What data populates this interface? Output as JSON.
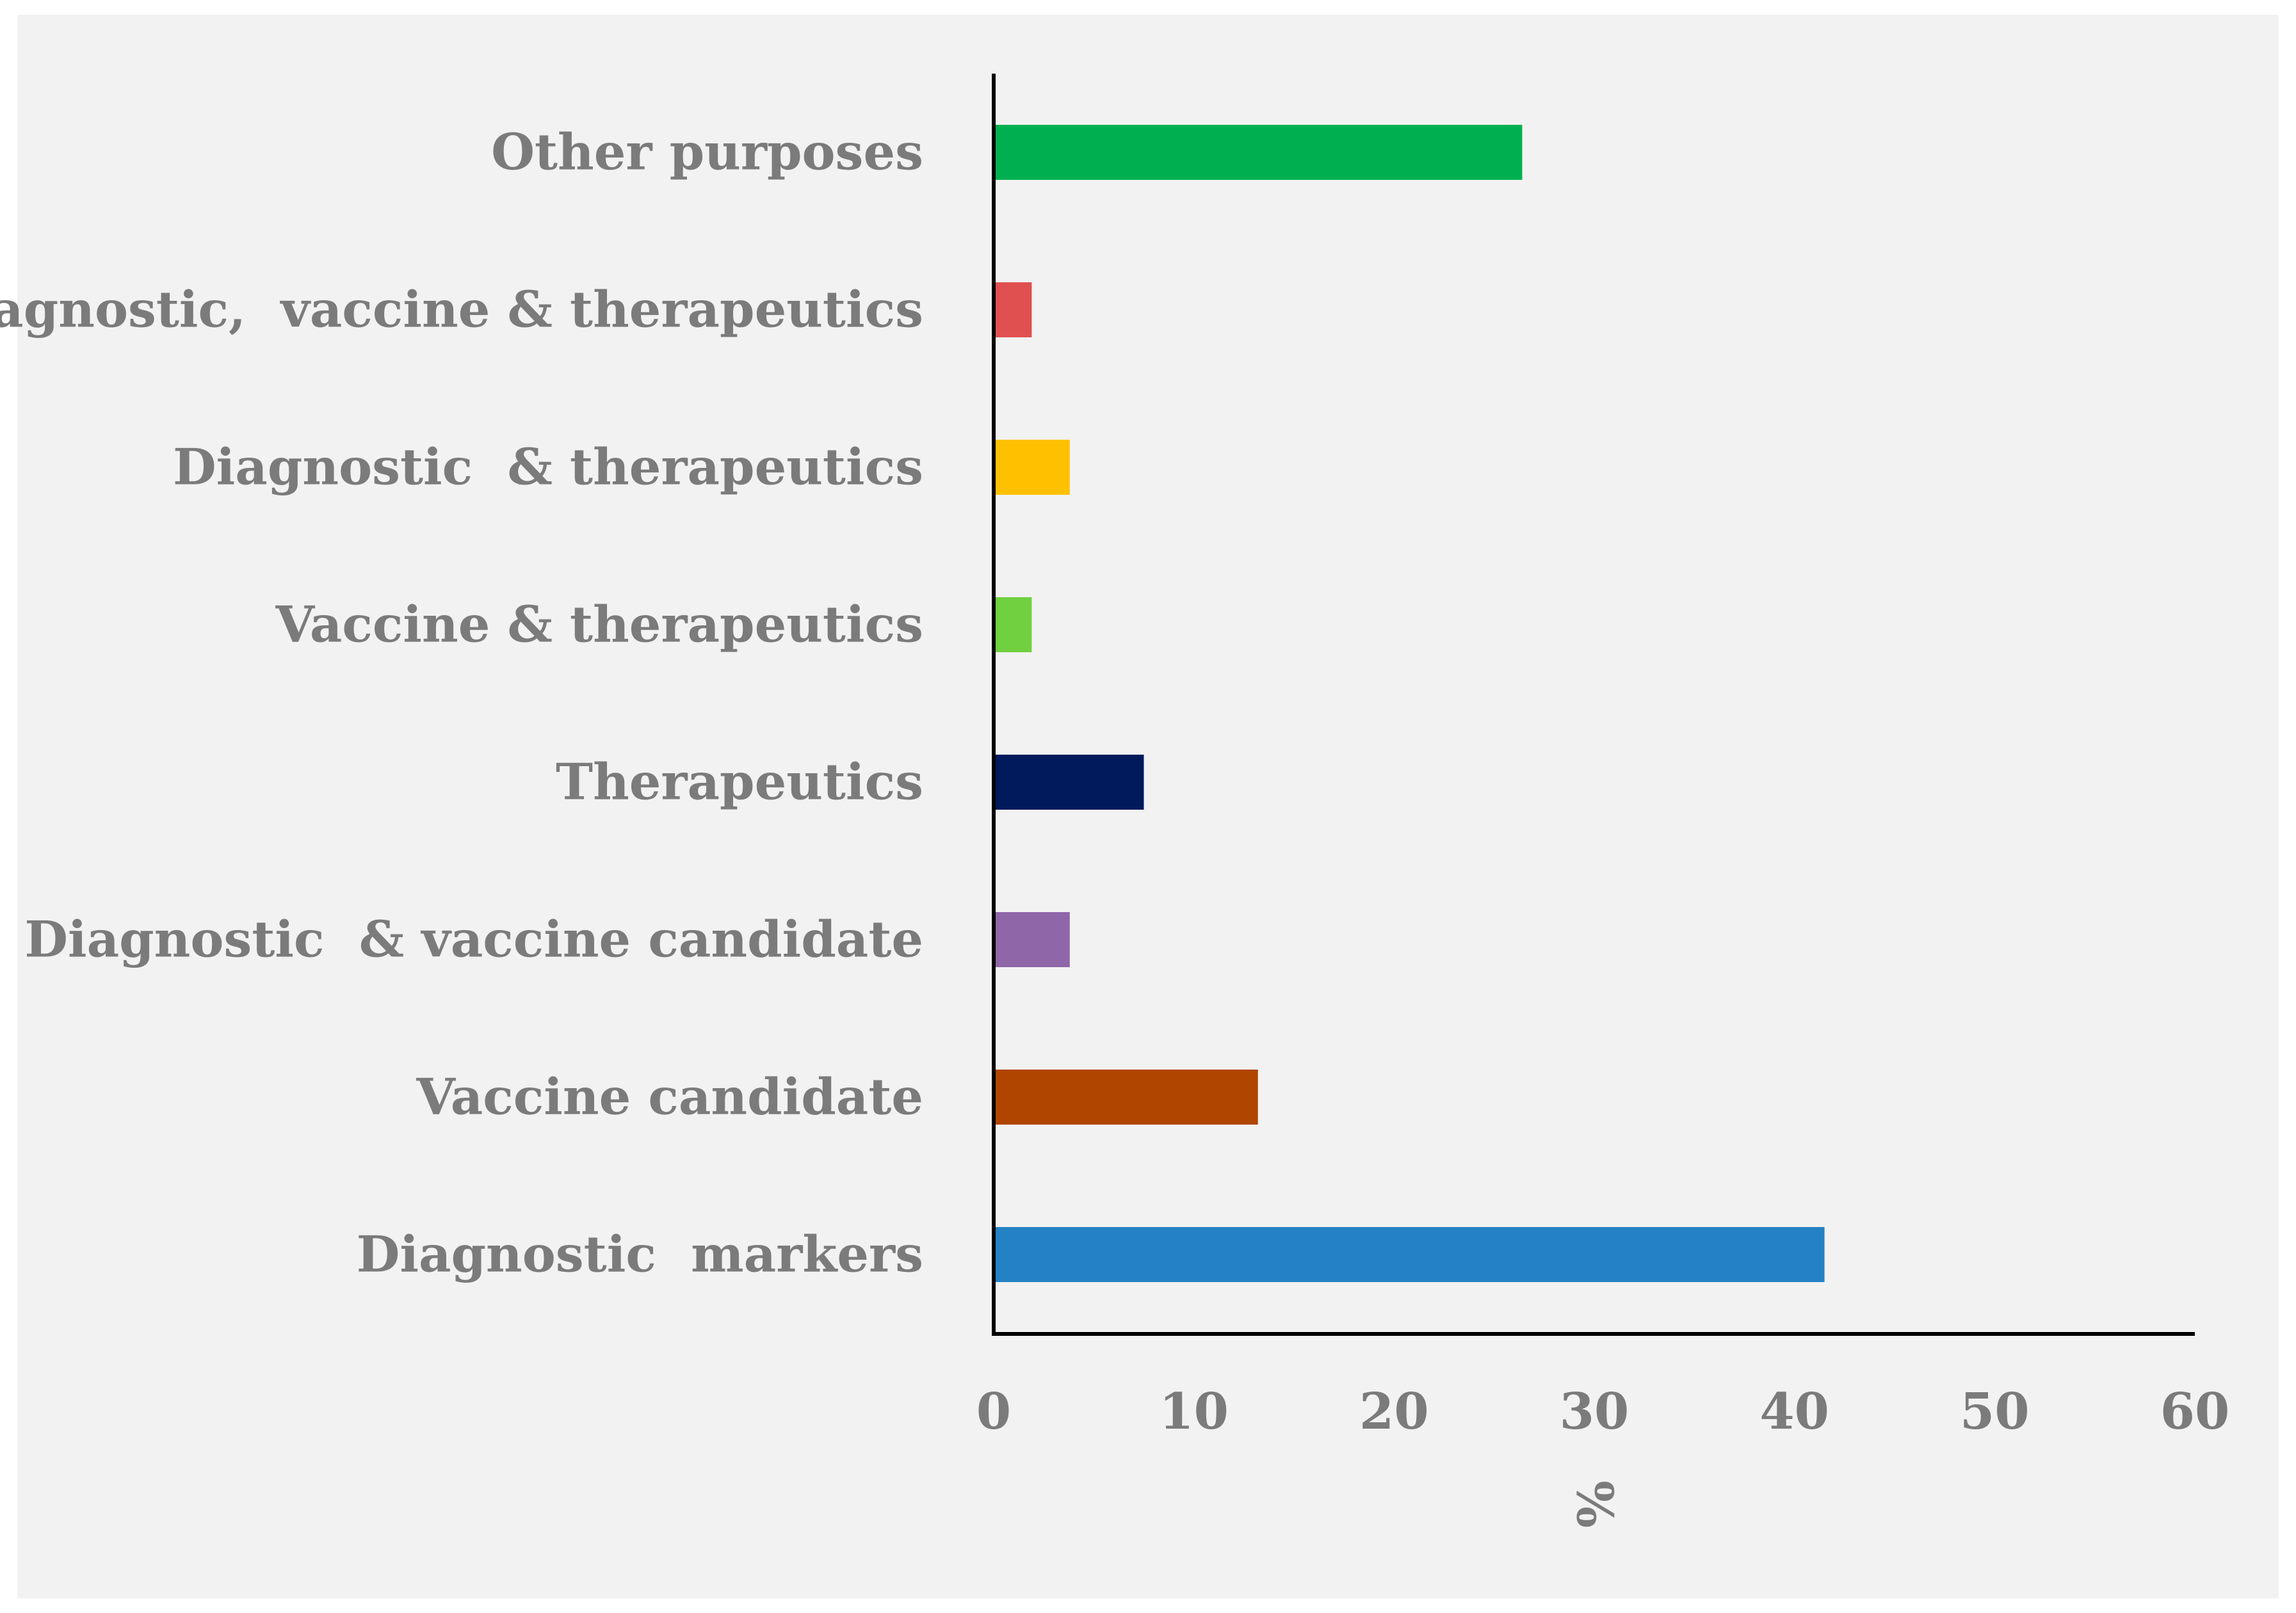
{
  "chart_data": {
    "type": "bar",
    "orientation": "horizontal",
    "categories": [
      "Other purposes",
      "Diagnostic,  vaccine & therapeutics",
      "Diagnostic  & therapeutics",
      "Vaccine & therapeutics",
      "Therapeutics",
      "Diagnostic  & vaccine candidate",
      "Vaccine candidate",
      "Diagnostic  markers"
    ],
    "values": [
      26.4,
      1.9,
      3.8,
      1.9,
      7.5,
      3.8,
      13.2,
      41.5
    ],
    "colors": [
      "#00b050",
      "#e05050",
      "#ffc000",
      "#70d040",
      "#001a5c",
      "#8f66a8",
      "#b04500",
      "#2482c4"
    ],
    "xlabel": "%",
    "ylabel": "",
    "xlim": [
      0,
      60
    ],
    "xticks": [
      "0",
      "10",
      "20",
      "30",
      "40",
      "50",
      "60"
    ],
    "grid": false,
    "background": "#f2f2f2"
  }
}
